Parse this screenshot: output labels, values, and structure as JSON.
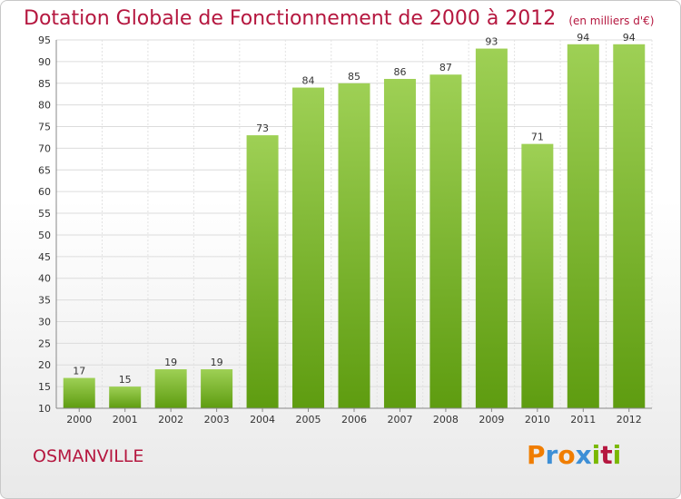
{
  "title": "Dotation Globale de Fonctionnement de 2000 à 2012",
  "unit": "(en milliers d'€)",
  "commune": "OSMANVILLE",
  "logo": {
    "letters": [
      "P",
      "r",
      "o",
      "x",
      "i",
      "t",
      "i"
    ],
    "colors": [
      "#f07d00",
      "#3d8fd6",
      "#f07d00",
      "#3d8fd6",
      "#7ab800",
      "#b5173f",
      "#7ab800"
    ]
  },
  "chart_data": {
    "type": "bar",
    "categories": [
      "2000",
      "2001",
      "2002",
      "2003",
      "2004",
      "2005",
      "2006",
      "2007",
      "2008",
      "2009",
      "2010",
      "2011",
      "2012"
    ],
    "values": [
      17,
      15,
      19,
      19,
      73,
      84,
      85,
      86,
      87,
      93,
      71,
      94,
      94
    ],
    "ylim": [
      10,
      95
    ],
    "yticks": [
      10,
      15,
      20,
      25,
      30,
      35,
      40,
      45,
      50,
      55,
      60,
      65,
      70,
      75,
      80,
      85,
      90,
      95
    ],
    "grid": true,
    "bar_color": "#8cc63f"
  }
}
